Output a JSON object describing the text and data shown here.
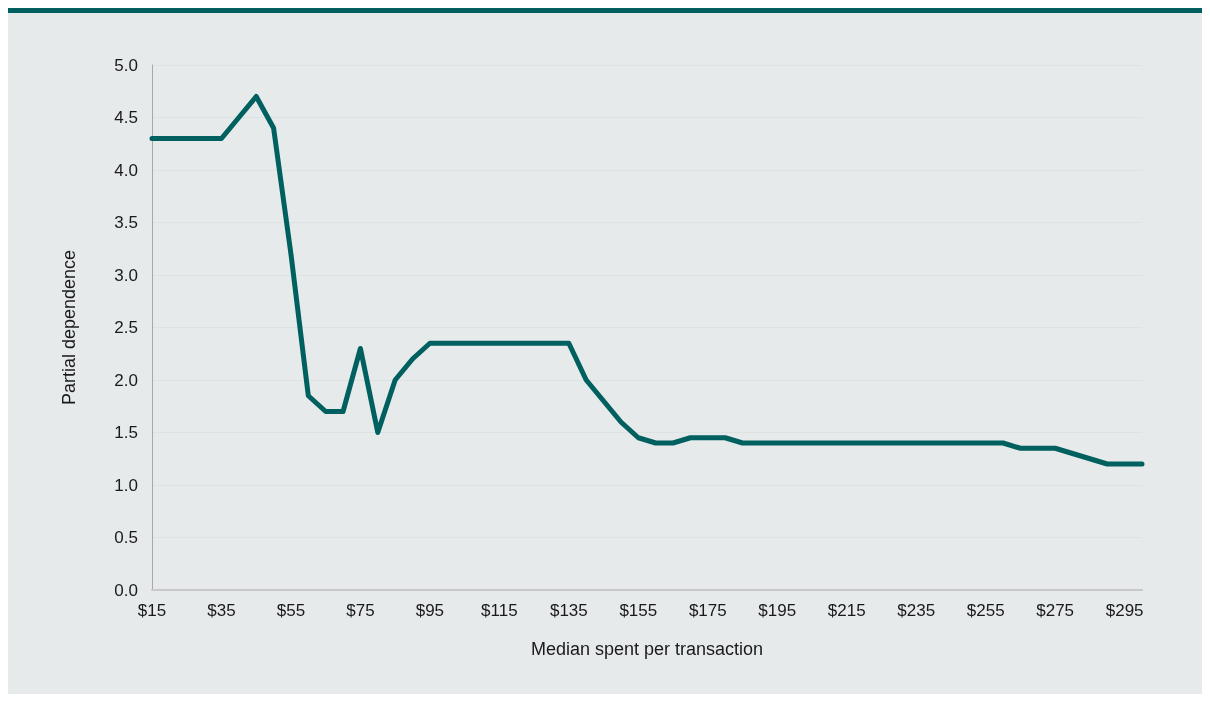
{
  "chart_data": {
    "type": "line",
    "xlabel": "Median spent per transaction",
    "ylabel": "Partial dependence",
    "categories": [
      "$15",
      null,
      null,
      null,
      "$35",
      null,
      null,
      null,
      "$55",
      null,
      null,
      null,
      "$75",
      null,
      null,
      null,
      "$95",
      null,
      null,
      null,
      "$115",
      null,
      null,
      null,
      "$135",
      null,
      null,
      null,
      "$155",
      null,
      null,
      null,
      "$175",
      null,
      null,
      null,
      "$195",
      null,
      null,
      null,
      "$215",
      null,
      null,
      null,
      "$235",
      null,
      null,
      null,
      "$255",
      null,
      null,
      null,
      "$275",
      null,
      null,
      null,
      "$295",
      null
    ],
    "series": [
      {
        "color": "#005f5f",
        "values": [
          4.3,
          4.3,
          4.3,
          4.3,
          4.3,
          4.5,
          4.7,
          4.4,
          3.2,
          1.85,
          1.7,
          1.7,
          2.3,
          1.5,
          2.0,
          2.2,
          2.35,
          2.35,
          2.35,
          2.35,
          2.35,
          2.35,
          2.35,
          2.35,
          2.35,
          2.0,
          1.8,
          1.6,
          1.45,
          1.4,
          1.4,
          1.45,
          1.45,
          1.45,
          1.4,
          1.4,
          1.4,
          1.4,
          1.4,
          1.4,
          1.4,
          1.4,
          1.4,
          1.4,
          1.4,
          1.4,
          1.4,
          1.4,
          1.4,
          1.4,
          1.35,
          1.35,
          1.35,
          1.3,
          1.25,
          1.2,
          1.2,
          1.2
        ]
      }
    ],
    "ylim": [
      0,
      5
    ],
    "yticks": [
      {
        "value": 0,
        "label": "0.0"
      },
      0.5,
      {
        "value": 1,
        "label": "1.0"
      },
      1.5,
      {
        "value": 2,
        "label": "2.0"
      },
      2.5,
      {
        "value": 3,
        "label": "3.0"
      },
      3.5,
      {
        "value": 4,
        "label": "4.0"
      },
      4.5,
      {
        "value": 5,
        "label": "5.0"
      }
    ],
    "grid": "y",
    "marker": "none",
    "line_style": "solid"
  }
}
